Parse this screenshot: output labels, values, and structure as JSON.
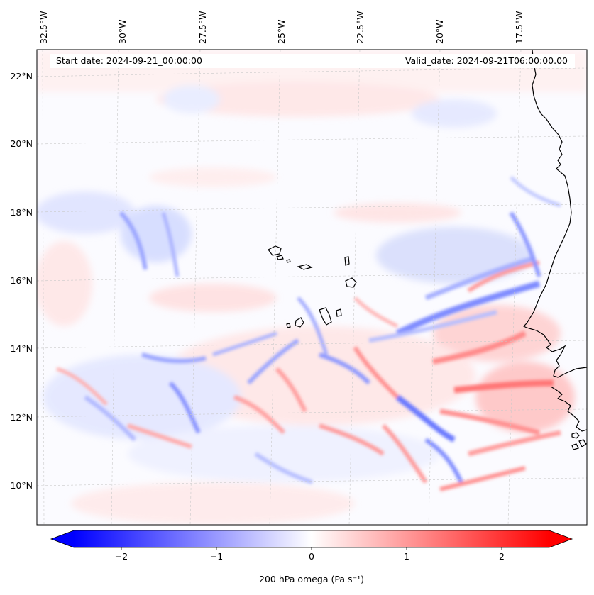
{
  "header": {
    "start_date": "Start date: 2024-09-21_00:00:00",
    "valid_date": "Valid_date: 2024-09-21T06:00:00.00"
  },
  "map": {
    "lon_labels": [
      "32.5°W",
      "30°W",
      "27.5°W",
      "25°W",
      "22.5°W",
      "20°W",
      "17.5°W"
    ],
    "lat_labels": [
      "22°N",
      "20°N",
      "18°N",
      "16°N",
      "14°N",
      "12°N",
      "10°N"
    ],
    "extent": {
      "lon": [
        -33.0,
        -15.7
      ],
      "lat": [
        8.8,
        22.8
      ]
    },
    "gridlines": true,
    "coastline_color": "#000000",
    "field_colormap": "bwr"
  },
  "colorbar": {
    "label": "200 hPa omega (Pa s⁻¹)",
    "ticks": [
      "−2",
      "−1",
      "0",
      "1",
      "2"
    ],
    "tick_values": [
      -2,
      -1,
      0,
      1,
      2
    ],
    "range": [
      -2.5,
      2.5
    ],
    "extend": "both",
    "colors": {
      "min": "#0000ff",
      "mid": "#ffffff",
      "max": "#ff0000"
    }
  }
}
